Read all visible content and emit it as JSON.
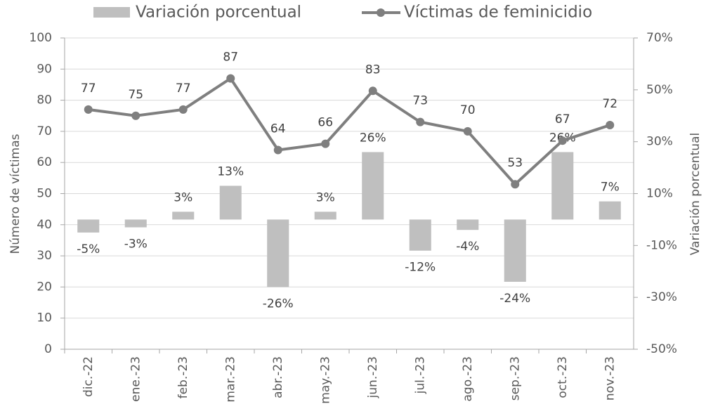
{
  "chart_data": {
    "type": "combo",
    "categories": [
      "dic.-22",
      "ene.-23",
      "feb.-23",
      "mar.-23",
      "abr.-23",
      "may.-23",
      "jun.-23",
      "jul.-23",
      "ago.-23",
      "sep.-23",
      "oct.-23",
      "nov.-23"
    ],
    "series": [
      {
        "name": "Variación porcentual",
        "type": "bar",
        "axis": "y2",
        "color": "#bfbfbf",
        "values": [
          -5,
          -3,
          3,
          13,
          -26,
          3,
          26,
          -12,
          -4,
          -24,
          26,
          7
        ],
        "value_labels": [
          "-5%",
          "-3%",
          "3%",
          "13%",
          "-26%",
          "3%",
          "26%",
          "-12%",
          "-4%",
          "-24%",
          "26%",
          "7%"
        ]
      },
      {
        "name": "Víctimas de feminicidio",
        "type": "line",
        "axis": "y",
        "color": "#7f7f7f",
        "values": [
          77,
          75,
          77,
          87,
          64,
          66,
          83,
          73,
          70,
          53,
          67,
          72
        ]
      }
    ],
    "ylabel": "Número de víctimas",
    "y2label": "Variación porcentual",
    "ylim": [
      0,
      100
    ],
    "yticks": [
      0,
      10,
      20,
      30,
      40,
      50,
      60,
      70,
      80,
      90,
      100
    ],
    "y2lim": [
      -50,
      70
    ],
    "y2ticks": [
      {
        "value": -50,
        "label": "-50%"
      },
      {
        "value": -30,
        "label": "-30%"
      },
      {
        "value": -10,
        "label": "-10%"
      },
      {
        "value": 10,
        "label": "10%"
      },
      {
        "value": 30,
        "label": "30%"
      },
      {
        "value": 50,
        "label": "50%"
      },
      {
        "value": 70,
        "label": "70%"
      }
    ],
    "grid": true,
    "legend": "top"
  }
}
